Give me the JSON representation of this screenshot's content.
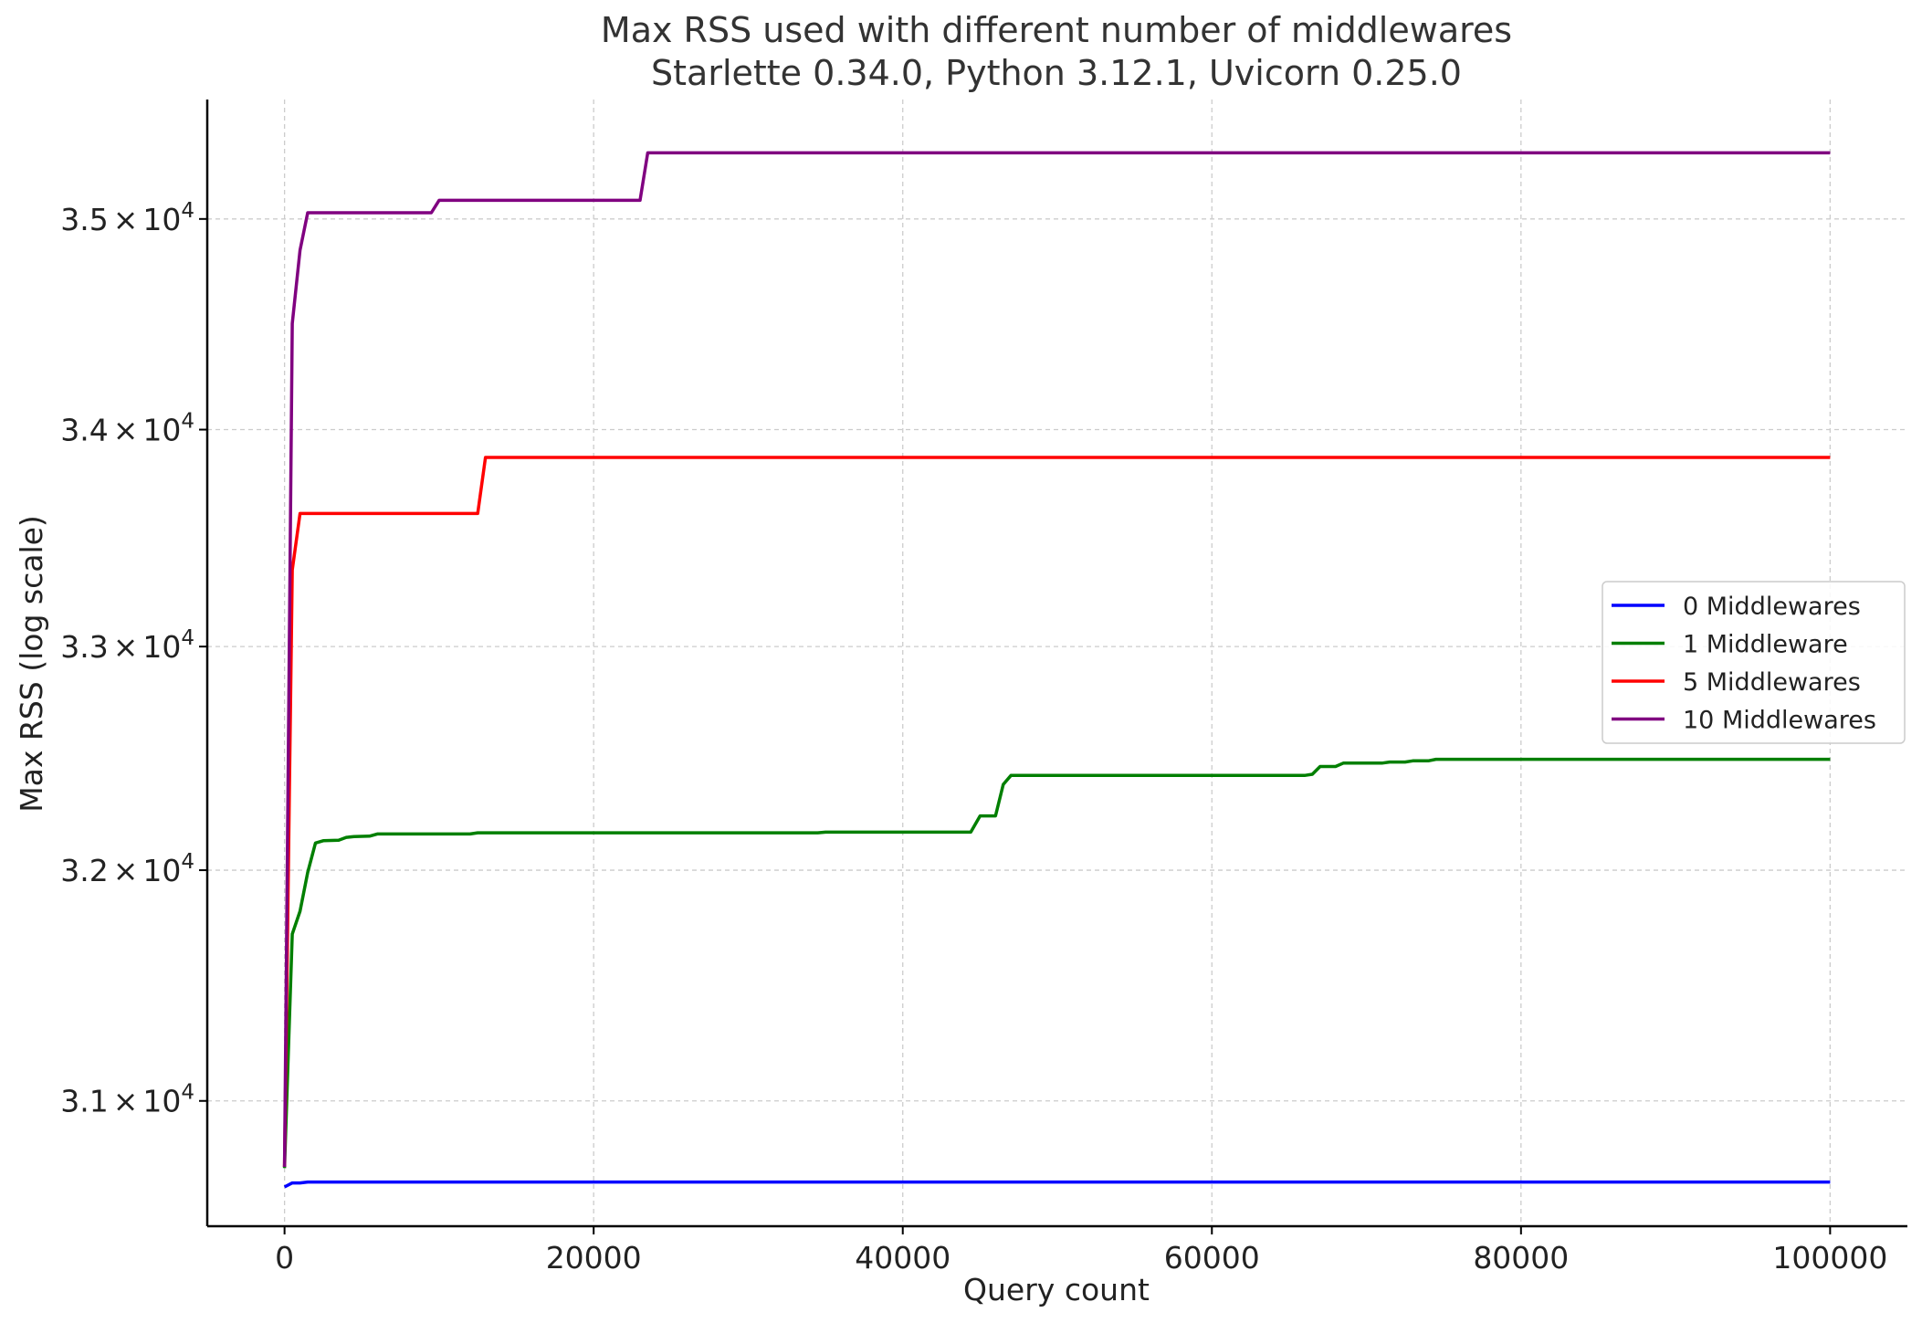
{
  "chart_data": {
    "type": "line",
    "title": "Max RSS used with different number of middlewares",
    "subtitle": "Starlette 0.34.0, Python 3.12.1, Uvicorn 0.25.0",
    "xlabel": "Query count",
    "ylabel": "Max RSS (log scale)",
    "yscale": "log",
    "xlim": [
      -5000,
      105000
    ],
    "ylim": [
      30470,
      35580
    ],
    "grid": true,
    "legend_position": "center-right",
    "xticks": [
      0,
      20000,
      40000,
      60000,
      80000,
      100000
    ],
    "xtick_labels": [
      "0",
      "20000",
      "40000",
      "60000",
      "80000",
      "100000"
    ],
    "yticks": [
      31000,
      32000,
      33000,
      34000,
      35000
    ],
    "ytick_labels": [
      {
        "mantissa": "3.1",
        "times": "×",
        "base": "10",
        "exp": "4"
      },
      {
        "mantissa": "3.2",
        "times": "×",
        "base": "10",
        "exp": "4"
      },
      {
        "mantissa": "3.3",
        "times": "×",
        "base": "10",
        "exp": "4"
      },
      {
        "mantissa": "3.4",
        "times": "×",
        "base": "10",
        "exp": "4"
      },
      {
        "mantissa": "3.5",
        "times": "×",
        "base": "10",
        "exp": "4"
      }
    ],
    "series": [
      {
        "name": "0 Middlewares",
        "color": "#0000ff",
        "points": [
          [
            0,
            30635
          ],
          [
            500,
            30652
          ],
          [
            1000,
            30652
          ],
          [
            1500,
            30656
          ],
          [
            100000,
            30656
          ]
        ]
      },
      {
        "name": "1 Middleware",
        "color": "#007f00",
        "points": [
          [
            0,
            30715
          ],
          [
            500,
            31720
          ],
          [
            1000,
            31820
          ],
          [
            1500,
            31990
          ],
          [
            2000,
            32120
          ],
          [
            2500,
            32130
          ],
          [
            3500,
            32132
          ],
          [
            4000,
            32145
          ],
          [
            4500,
            32148
          ],
          [
            5500,
            32150
          ],
          [
            6000,
            32160
          ],
          [
            12000,
            32160
          ],
          [
            12500,
            32165
          ],
          [
            34500,
            32165
          ],
          [
            35000,
            32168
          ],
          [
            44400,
            32168
          ],
          [
            45000,
            32240
          ],
          [
            46000,
            32240
          ],
          [
            46500,
            32380
          ],
          [
            47000,
            32420
          ],
          [
            66000,
            32420
          ],
          [
            66500,
            32425
          ],
          [
            67000,
            32460
          ],
          [
            68000,
            32460
          ],
          [
            68500,
            32475
          ],
          [
            71000,
            32475
          ],
          [
            71500,
            32480
          ],
          [
            72500,
            32480
          ],
          [
            73000,
            32485
          ],
          [
            74000,
            32485
          ],
          [
            74500,
            32492
          ],
          [
            100000,
            32492
          ]
        ]
      },
      {
        "name": "5 Middlewares",
        "color": "#ff0000",
        "points": [
          [
            0,
            30720
          ],
          [
            500,
            33350
          ],
          [
            1000,
            33610
          ],
          [
            12500,
            33610
          ],
          [
            13000,
            33870
          ],
          [
            100000,
            33870
          ]
        ]
      },
      {
        "name": "10 Middlewares",
        "color": "#800080",
        "points": [
          [
            0,
            30720
          ],
          [
            500,
            34500
          ],
          [
            1000,
            34850
          ],
          [
            1500,
            35030
          ],
          [
            9500,
            35030
          ],
          [
            10000,
            35090
          ],
          [
            23000,
            35090
          ],
          [
            23500,
            35320
          ],
          [
            100000,
            35320
          ]
        ]
      }
    ]
  }
}
